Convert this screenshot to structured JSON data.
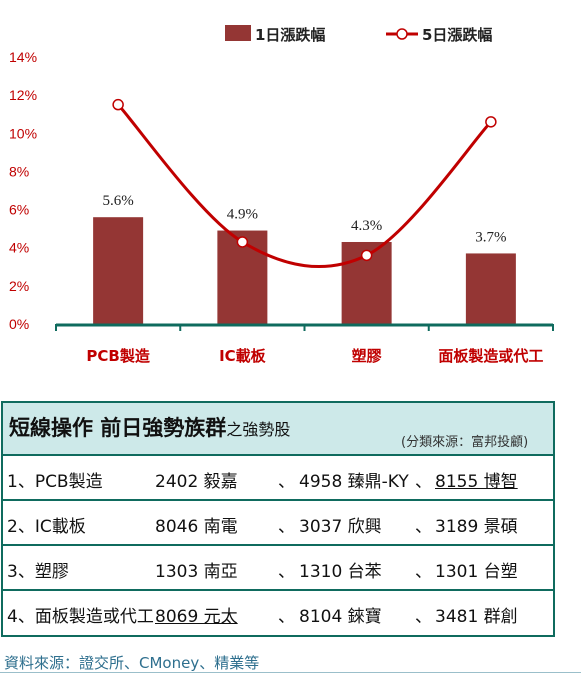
{
  "chart_data": {
    "type": "bar",
    "categories": [
      "PCB製造",
      "IC載板",
      "塑膠",
      "面板製造或代工"
    ],
    "series": [
      {
        "name": "1日漲跌幅",
        "kind": "bar",
        "values": [
          5.6,
          4.9,
          4.3,
          3.7
        ],
        "labels": [
          "5.6%",
          "4.9%",
          "4.3%",
          "3.7%"
        ],
        "color": "#943634"
      },
      {
        "name": "5日漲跌幅",
        "kind": "line",
        "values": [
          11.5,
          4.3,
          3.6,
          10.6
        ],
        "color": "#c00000"
      }
    ],
    "ylim": [
      0,
      14
    ],
    "yticks": [
      "0%",
      "2%",
      "4%",
      "6%",
      "8%",
      "10%",
      "12%",
      "14%"
    ],
    "grid": false,
    "legend": "top",
    "axis_color": "#0f6b5e"
  },
  "panel": {
    "title_main": "短線操作 前日強勢族群",
    "title_sub": "之強勢股",
    "source": "(分類來源：富邦投顧)",
    "rows": [
      {
        "name": "1、PCB製造",
        "s1": "2402 毅嘉",
        "s2": "4958 臻鼎-KY",
        "s3": "8155 博智"
      },
      {
        "name": "2、IC載板",
        "s1": "8046 南電",
        "s2": "3037 欣興",
        "s3": "3189 景碩"
      },
      {
        "name": "3、塑膠",
        "s1": "1303 南亞",
        "s2": "1310 台苯",
        "s3": "1301 台塑"
      },
      {
        "name": "4、面板製造或代工",
        "s1": "8069 元太",
        "s2": "8104 錸寶",
        "s3": "3481 群創"
      }
    ],
    "separator": "、"
  },
  "footnote": "資料來源：證交所、CMoney、精業等"
}
